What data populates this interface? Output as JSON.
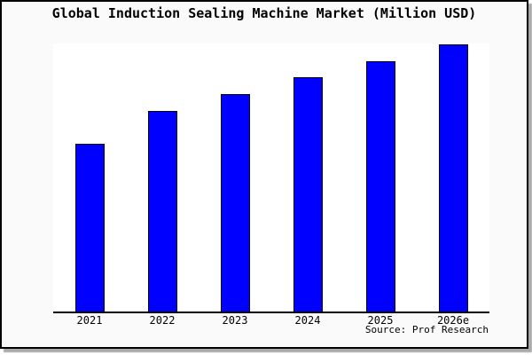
{
  "source": "Source: Prof Research",
  "colors": {
    "bar_fill": "#0000ff",
    "bar_border": "#000000",
    "axis": "#000000",
    "plot_background": "#ffffff",
    "page_background": "#fafafa",
    "frame_border": "#000000",
    "frame_shadow": "#aaaaaa",
    "text": "#000000"
  },
  "chart_data": {
    "type": "bar",
    "title": "Global Induction Sealing Machine Market (Million USD)",
    "categories": [
      "2021",
      "2022",
      "2023",
      "2024",
      "2025",
      "2026e"
    ],
    "values": [
      62.8,
      75.1,
      81.4,
      87.7,
      93.7,
      100
    ],
    "value_scale": "relative bar height, tallest bar (2026e) = 100; no numeric y-axis labels shown in chart",
    "xlabel": "",
    "ylabel": "",
    "ylim": [
      0,
      100
    ],
    "grid": false,
    "legend": false,
    "y_axis_visible": false,
    "x_axis_visible": true
  }
}
